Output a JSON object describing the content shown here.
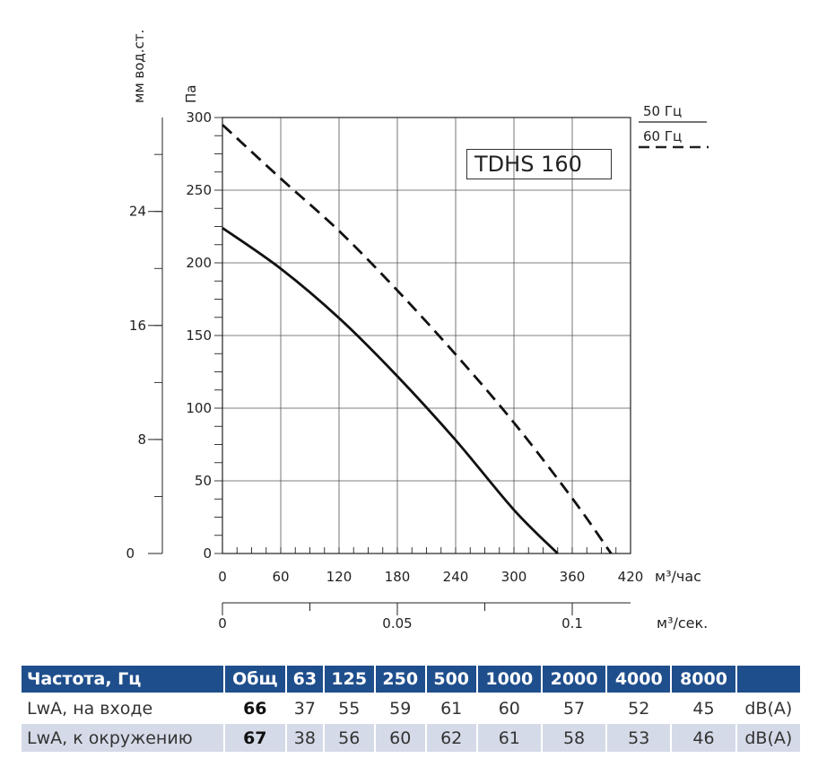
{
  "chart_data": {
    "type": "line",
    "model": "TDHS 160",
    "y_label_left": "мм вод.ст.",
    "y_label_right": "Па",
    "x_label_primary": "м³/час",
    "x_label_secondary": "м³/сек.",
    "x_ticks": [
      0,
      60,
      120,
      180,
      240,
      300,
      360,
      420
    ],
    "y_ticks_pa": [
      0,
      50,
      100,
      150,
      200,
      250,
      300
    ],
    "y_ticks_mm": [
      0,
      8,
      16,
      24
    ],
    "x2_ticks": [
      "0",
      "0.05",
      "0.1"
    ],
    "xlim": [
      0,
      420
    ],
    "ylim": [
      0,
      300
    ],
    "grid": true,
    "legend": "top-right",
    "series": [
      {
        "name": "50 Гц",
        "style": "solid",
        "x": [
          0,
          60,
          120,
          180,
          240,
          300,
          345
        ],
        "y": [
          224,
          196,
          162,
          122,
          78,
          30,
          0
        ]
      },
      {
        "name": "60 Гц",
        "style": "dashed",
        "x": [
          0,
          60,
          120,
          180,
          240,
          300,
          360,
          400
        ],
        "y": [
          295,
          258,
          222,
          181,
          137,
          90,
          38,
          0
        ]
      }
    ]
  },
  "table": {
    "headers": [
      "Частота, Гц",
      "Общ",
      "63",
      "125",
      "250",
      "500",
      "1000",
      "2000",
      "4000",
      "8000",
      ""
    ],
    "rows": [
      {
        "label": "LwA, на входе",
        "total": "66",
        "values": [
          "37",
          "55",
          "59",
          "61",
          "60",
          "57",
          "52",
          "45"
        ],
        "unit": "dB(A)"
      },
      {
        "label": "LwA, к окружению",
        "total": "67",
        "values": [
          "38",
          "56",
          "60",
          "62",
          "61",
          "58",
          "53",
          "46"
        ],
        "unit": "dB(A)"
      }
    ]
  }
}
